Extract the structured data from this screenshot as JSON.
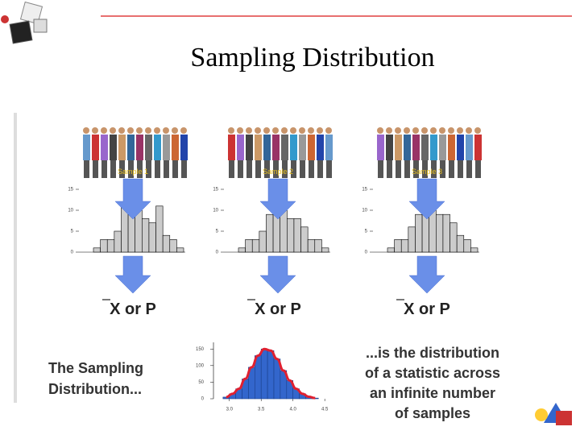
{
  "title": "Sampling Distribution",
  "populations": [
    {
      "label": "Sample 1",
      "statistic": "X or P",
      "histogram": {
        "values": [
          1,
          3,
          3,
          5,
          12,
          14,
          10,
          8,
          7,
          11,
          4,
          3,
          1
        ],
        "ylim": [
          0,
          15
        ],
        "yticks": [
          0,
          5,
          10,
          15
        ]
      }
    },
    {
      "label": "Sample 2",
      "statistic": "X or P",
      "histogram": {
        "values": [
          1,
          3,
          3,
          5,
          9,
          13,
          10,
          8,
          8,
          6,
          3,
          3,
          1
        ],
        "ylim": [
          0,
          15
        ],
        "yticks": [
          0,
          5,
          10,
          15
        ]
      }
    },
    {
      "label": "Sample 3",
      "statistic": "X or P",
      "histogram": {
        "values": [
          1,
          3,
          3,
          6,
          9,
          13,
          11,
          9,
          9,
          7,
          4,
          3,
          1
        ],
        "ylim": [
          0,
          15
        ],
        "yticks": [
          0,
          5,
          10,
          15
        ]
      }
    }
  ],
  "sampling_distribution": {
    "type": "histogram",
    "bins": [
      2.9,
      3.0,
      3.1,
      3.2,
      3.3,
      3.4,
      3.5,
      3.6,
      3.7,
      3.8,
      3.9,
      4.0,
      4.1,
      4.2,
      4.3,
      4.4
    ],
    "values": [
      5,
      15,
      30,
      60,
      95,
      130,
      150,
      145,
      120,
      85,
      55,
      30,
      15,
      6,
      2
    ],
    "color": "#3366cc",
    "curve_color": "#e02030",
    "xlim": [
      2.75,
      4.65
    ],
    "ylim": [
      0,
      170
    ],
    "yticks": [
      0,
      50,
      100,
      150
    ],
    "xticks": [
      {
        "value": 3,
        "label": "3.0"
      },
      3.5,
      {
        "value": 4,
        "label": "4.0"
      },
      4.5
    ]
  },
  "left_text": [
    "The Sampling",
    "Distribution..."
  ],
  "right_text": [
    "...is the distribution",
    "of a statistic across",
    "an infinite number",
    "of samples"
  ]
}
